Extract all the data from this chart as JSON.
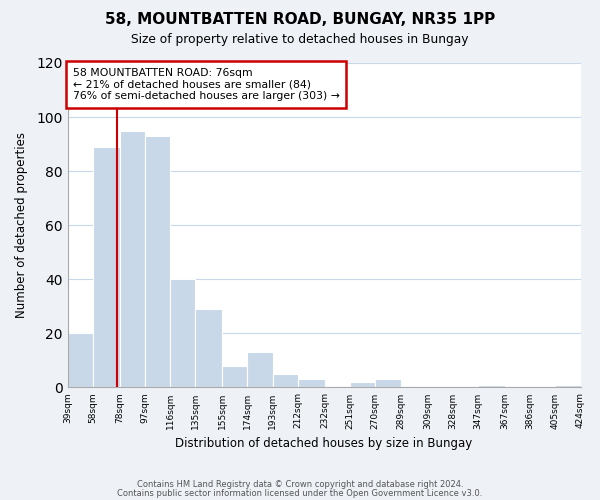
{
  "title": "58, MOUNTBATTEN ROAD, BUNGAY, NR35 1PP",
  "subtitle": "Size of property relative to detached houses in Bungay",
  "xlabel": "Distribution of detached houses by size in Bungay",
  "ylabel": "Number of detached properties",
  "bar_edges": [
    39,
    58,
    78,
    97,
    116,
    135,
    155,
    174,
    193,
    212,
    232,
    251,
    270,
    289,
    309,
    328,
    347,
    367,
    386,
    405,
    424
  ],
  "bar_heights": [
    20,
    89,
    95,
    93,
    40,
    29,
    8,
    13,
    5,
    3,
    0,
    2,
    3,
    0,
    0,
    0,
    1,
    0,
    0,
    1
  ],
  "bar_color": "#c8d8e8",
  "vline_x": 76,
  "vline_color": "#cc0000",
  "ylim": [
    0,
    120
  ],
  "yticks": [
    0,
    20,
    40,
    60,
    80,
    100,
    120
  ],
  "tick_labels": [
    "39sqm",
    "58sqm",
    "78sqm",
    "97sqm",
    "116sqm",
    "135sqm",
    "155sqm",
    "174sqm",
    "193sqm",
    "212sqm",
    "232sqm",
    "251sqm",
    "270sqm",
    "289sqm",
    "309sqm",
    "328sqm",
    "347sqm",
    "367sqm",
    "386sqm",
    "405sqm",
    "424sqm"
  ],
  "annotation_title": "58 MOUNTBATTEN ROAD: 76sqm",
  "annotation_line1": "← 21% of detached houses are smaller (84)",
  "annotation_line2": "76% of semi-detached houses are larger (303) →",
  "annotation_box_color": "#ffffff",
  "annotation_border_color": "#cc0000",
  "footer_line1": "Contains HM Land Registry data © Crown copyright and database right 2024.",
  "footer_line2": "Contains public sector information licensed under the Open Government Licence v3.0.",
  "bg_color": "#eef2f7",
  "plot_bg_color": "#ffffff",
  "grid_color": "#c8d8e8"
}
